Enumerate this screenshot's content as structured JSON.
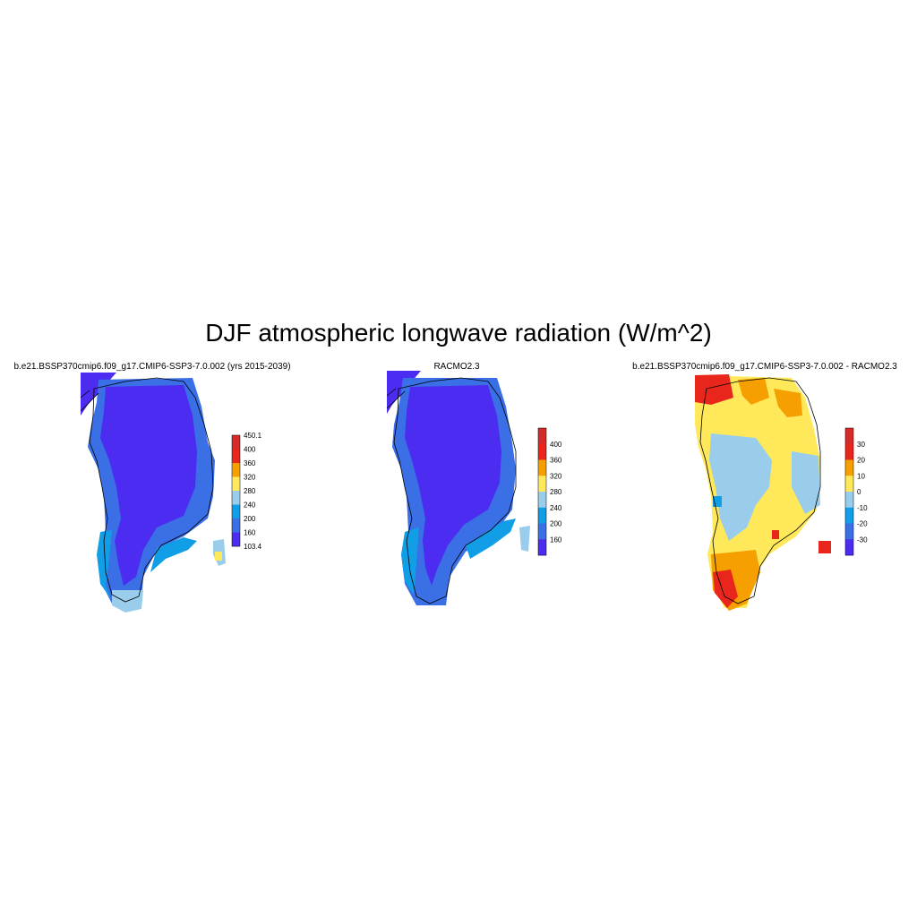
{
  "figure": {
    "title": "DJF atmospheric longwave radiation (W/m^2)"
  },
  "panels": [
    {
      "title": "b.e21.BSSP370cmip6.f09_g17.CMIP6-SSP3-7.0.002 (yrs 2015-2039)",
      "colorbar": {
        "labels": [
          "450.1",
          "400",
          "360",
          "320",
          "280",
          "240",
          "200",
          "160",
          "103.4"
        ],
        "colors": [
          "#d62a2a",
          "#e8261c",
          "#f5a000",
          "#ffe95a",
          "#99cdeb",
          "#119ee6",
          "#3a6fe6",
          "#4b2cf0"
        ]
      }
    },
    {
      "title": "RACMO2.3",
      "colorbar": {
        "labels": [
          "400",
          "360",
          "320",
          "280",
          "240",
          "200",
          "160"
        ],
        "colors": [
          "#d62a2a",
          "#e8261c",
          "#f5a000",
          "#ffe95a",
          "#99cdeb",
          "#119ee6",
          "#3a6fe6",
          "#4b2cf0"
        ]
      }
    },
    {
      "title": "b.e21.BSSP370cmip6.f09_g17.CMIP6-SSP3-7.0.002 - RACMO2.3",
      "colorbar": {
        "labels": [
          "30",
          "20",
          "10",
          "0",
          "-10",
          "-20",
          "-30"
        ],
        "colors": [
          "#d62a2a",
          "#e8261c",
          "#f5a000",
          "#ffe95a",
          "#99cdeb",
          "#119ee6",
          "#3a6fe6",
          "#4b2cf0"
        ]
      }
    }
  ]
}
